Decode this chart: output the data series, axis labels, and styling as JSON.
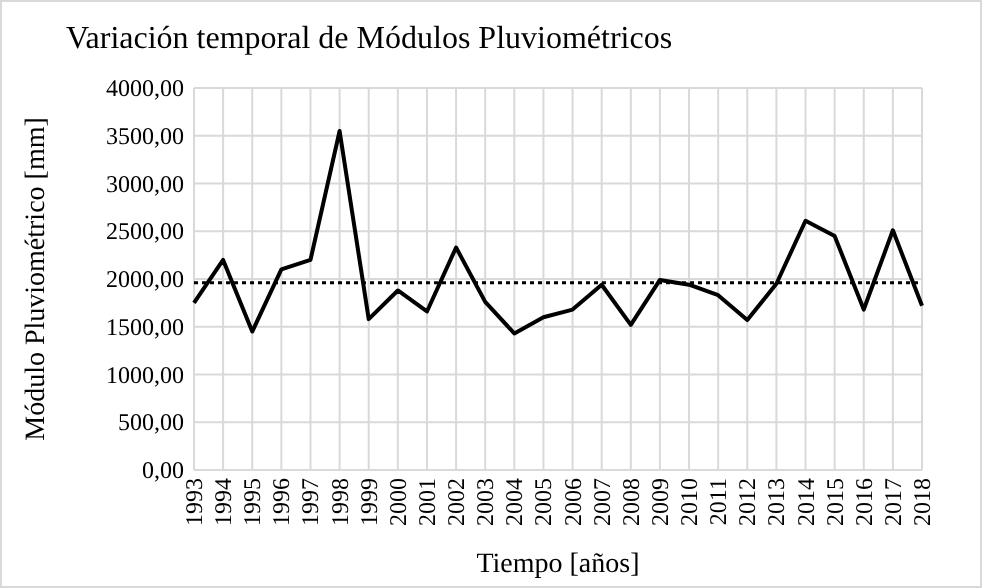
{
  "chart_data": {
    "type": "line",
    "title": "Variación temporal de Módulos Pluviométricos",
    "xlabel": "Tiempo [años]",
    "ylabel": "Módulo Pluviométrico [mm]",
    "categories": [
      "1993",
      "1994",
      "1995",
      "1996",
      "1997",
      "1998",
      "1999",
      "2000",
      "2001",
      "2002",
      "2003",
      "2004",
      "2005",
      "2006",
      "2007",
      "2008",
      "2009",
      "2010",
      "2011",
      "2012",
      "2013",
      "2014",
      "2015",
      "2016",
      "2017",
      "2018"
    ],
    "series": [
      {
        "color": "#000000",
        "values": [
          1750,
          2200,
          1450,
          2100,
          2200,
          3550,
          1580,
          1880,
          1660,
          2330,
          1760,
          1430,
          1600,
          1680,
          1940,
          1520,
          1990,
          1940,
          1830,
          1570,
          1950,
          2610,
          2450,
          1680,
          2510,
          1720
        ]
      }
    ],
    "ylim": [
      0,
      4000
    ],
    "yticks": [
      {
        "value": 0,
        "label": "0,00"
      },
      {
        "value": 500,
        "label": "500,00"
      },
      {
        "value": 1000,
        "label": "1000,00"
      },
      {
        "value": 1500,
        "label": "1500,00"
      },
      {
        "value": 2000,
        "label": "2000,00"
      },
      {
        "value": 2500,
        "label": "2500,00"
      },
      {
        "value": 3000,
        "label": "3000,00"
      },
      {
        "value": 3500,
        "label": "3500,00"
      },
      {
        "value": 4000,
        "label": "4000,00"
      }
    ],
    "ref_lines": [
      {
        "axis": "y",
        "value": 1960,
        "color": "#000000",
        "line_style": "dotted"
      }
    ],
    "grid": true,
    "legend": false,
    "marker": "none",
    "line_style": "solid"
  }
}
